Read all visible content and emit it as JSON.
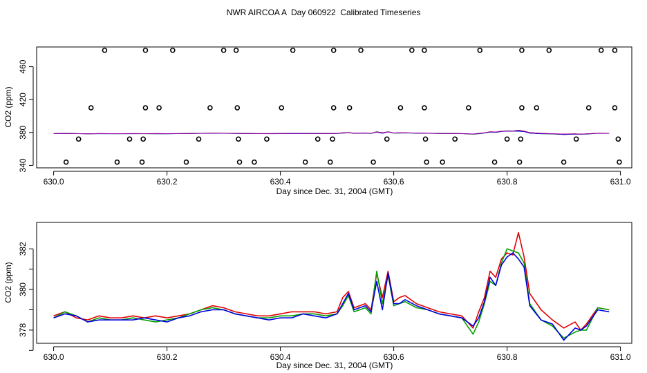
{
  "page_title": "NWR AIRCOA A  Day 060922  Calibrated Timeseries",
  "chart_data": [
    {
      "type": "scatter+line",
      "xlabel": "Day since Dec. 31, 2004 (GMT)",
      "ylabel": "CO2 (ppm)",
      "xlim": [
        629.97,
        631.02
      ],
      "ylim": [
        337,
        484
      ],
      "xticks": [
        630.0,
        630.2,
        630.4,
        630.6,
        630.8,
        631.0
      ],
      "xtick_labels": [
        "630.0",
        "630.2",
        "630.4",
        "630.6",
        "630.8",
        "631.0"
      ],
      "yticks": [
        340,
        380,
        420,
        460
      ],
      "ytick_labels": [
        "340",
        "380",
        "420",
        "460"
      ],
      "calibration_points": {
        "marker": "open-circle",
        "levels_ppm": [
          480,
          410,
          372,
          344
        ],
        "x_at_480": [
          630.09,
          630.162,
          630.21,
          630.3,
          630.322,
          630.422,
          630.494,
          630.542,
          630.632,
          630.654,
          630.752,
          630.826,
          630.874,
          630.966,
          630.99
        ],
        "x_at_410": [
          630.066,
          630.162,
          630.186,
          630.276,
          630.324,
          630.402,
          630.494,
          630.522,
          630.612,
          630.654,
          630.732,
          630.826,
          630.852,
          630.944,
          630.99
        ],
        "x_at_372": [
          630.044,
          630.134,
          630.158,
          630.256,
          630.326,
          630.376,
          630.466,
          630.492,
          630.588,
          630.656,
          630.708,
          630.8,
          630.824,
          630.922,
          630.996
        ],
        "x_at_344": [
          630.022,
          630.112,
          630.156,
          630.234,
          630.328,
          630.354,
          630.444,
          630.488,
          630.564,
          630.658,
          630.686,
          630.778,
          630.822,
          630.9,
          630.998
        ]
      },
      "series_note": "Ambient CO2 series (red, green, blue, purple) overplotted near 379 ppm"
    },
    {
      "type": "line",
      "xlabel": "Day since Dec. 31, 2004 (GMT)",
      "ylabel": "CO2 (ppm)",
      "xlim": [
        629.97,
        631.02
      ],
      "ylim": [
        377.35,
        383.3
      ],
      "xticks": [
        630.0,
        630.2,
        630.4,
        630.6,
        630.8,
        631.0
      ],
      "xtick_labels": [
        "630.0",
        "630.2",
        "630.4",
        "630.6",
        "630.8",
        "631.0"
      ],
      "yticks": [
        378,
        380,
        382
      ],
      "ytick_labels": [
        "378",
        "380",
        "382"
      ],
      "minor_yticks": [
        377,
        379,
        381
      ],
      "x": [
        630.0,
        630.02,
        630.04,
        630.06,
        630.08,
        630.1,
        630.12,
        630.14,
        630.16,
        630.18,
        630.2,
        630.22,
        630.24,
        630.26,
        630.28,
        630.3,
        630.32,
        630.34,
        630.36,
        630.38,
        630.4,
        630.42,
        630.44,
        630.46,
        630.48,
        630.5,
        630.51,
        630.52,
        630.53,
        630.54,
        630.55,
        630.56,
        630.57,
        630.58,
        630.59,
        630.6,
        630.61,
        630.62,
        630.64,
        630.66,
        630.68,
        630.7,
        630.72,
        630.74,
        630.75,
        630.76,
        630.77,
        630.78,
        630.79,
        630.8,
        630.81,
        630.82,
        630.83,
        630.84,
        630.86,
        630.88,
        630.9,
        630.92,
        630.93,
        630.94,
        630.96,
        630.98
      ],
      "series": [
        {
          "name": "red",
          "color": "#e00000",
          "values": [
            378.7,
            378.9,
            378.6,
            378.5,
            378.7,
            378.6,
            378.6,
            378.7,
            378.6,
            378.7,
            378.6,
            378.7,
            378.8,
            379.0,
            379.2,
            379.1,
            378.9,
            378.8,
            378.7,
            378.7,
            378.8,
            378.9,
            378.9,
            378.9,
            378.8,
            378.9,
            379.6,
            379.9,
            379.1,
            379.2,
            379.3,
            379.0,
            380.8,
            379.6,
            380.9,
            379.4,
            379.6,
            379.7,
            379.3,
            379.1,
            378.9,
            378.8,
            378.7,
            378.1,
            378.9,
            379.6,
            380.9,
            380.6,
            381.5,
            381.8,
            381.7,
            382.8,
            381.6,
            379.8,
            379.0,
            378.5,
            378.1,
            378.4,
            378.0,
            378.3,
            379.1,
            379.0
          ]
        },
        {
          "name": "green",
          "color": "#00a000",
          "values": [
            378.6,
            378.9,
            378.7,
            378.4,
            378.6,
            378.5,
            378.5,
            378.6,
            378.5,
            378.4,
            378.5,
            378.6,
            378.8,
            379.0,
            379.1,
            379.0,
            378.8,
            378.7,
            378.6,
            378.6,
            378.7,
            378.7,
            378.8,
            378.8,
            378.7,
            378.8,
            379.2,
            379.7,
            378.9,
            379.0,
            379.1,
            378.8,
            380.9,
            379.3,
            380.7,
            379.2,
            379.3,
            379.4,
            379.1,
            379.0,
            378.8,
            378.7,
            378.6,
            377.8,
            378.4,
            379.3,
            380.4,
            380.2,
            381.3,
            382.0,
            381.9,
            381.8,
            381.3,
            379.3,
            378.5,
            378.2,
            377.6,
            377.9,
            378.0,
            378.0,
            379.1,
            379.0
          ]
        },
        {
          "name": "blue",
          "color": "#0000e0",
          "values": [
            378.6,
            378.8,
            378.7,
            378.4,
            378.5,
            378.5,
            378.5,
            378.5,
            378.6,
            378.5,
            378.4,
            378.6,
            378.7,
            378.9,
            379.0,
            379.0,
            378.8,
            378.7,
            378.6,
            378.5,
            378.6,
            378.6,
            378.8,
            378.7,
            378.6,
            378.8,
            379.3,
            379.8,
            379.0,
            379.1,
            379.2,
            378.9,
            380.4,
            379.0,
            380.8,
            379.3,
            379.3,
            379.5,
            379.2,
            379.0,
            378.8,
            378.7,
            378.6,
            378.2,
            378.6,
            379.4,
            380.6,
            380.2,
            381.2,
            381.6,
            381.8,
            381.5,
            381.1,
            379.2,
            378.5,
            378.3,
            377.5,
            378.1,
            378.0,
            378.2,
            379.0,
            378.9
          ]
        }
      ]
    }
  ]
}
